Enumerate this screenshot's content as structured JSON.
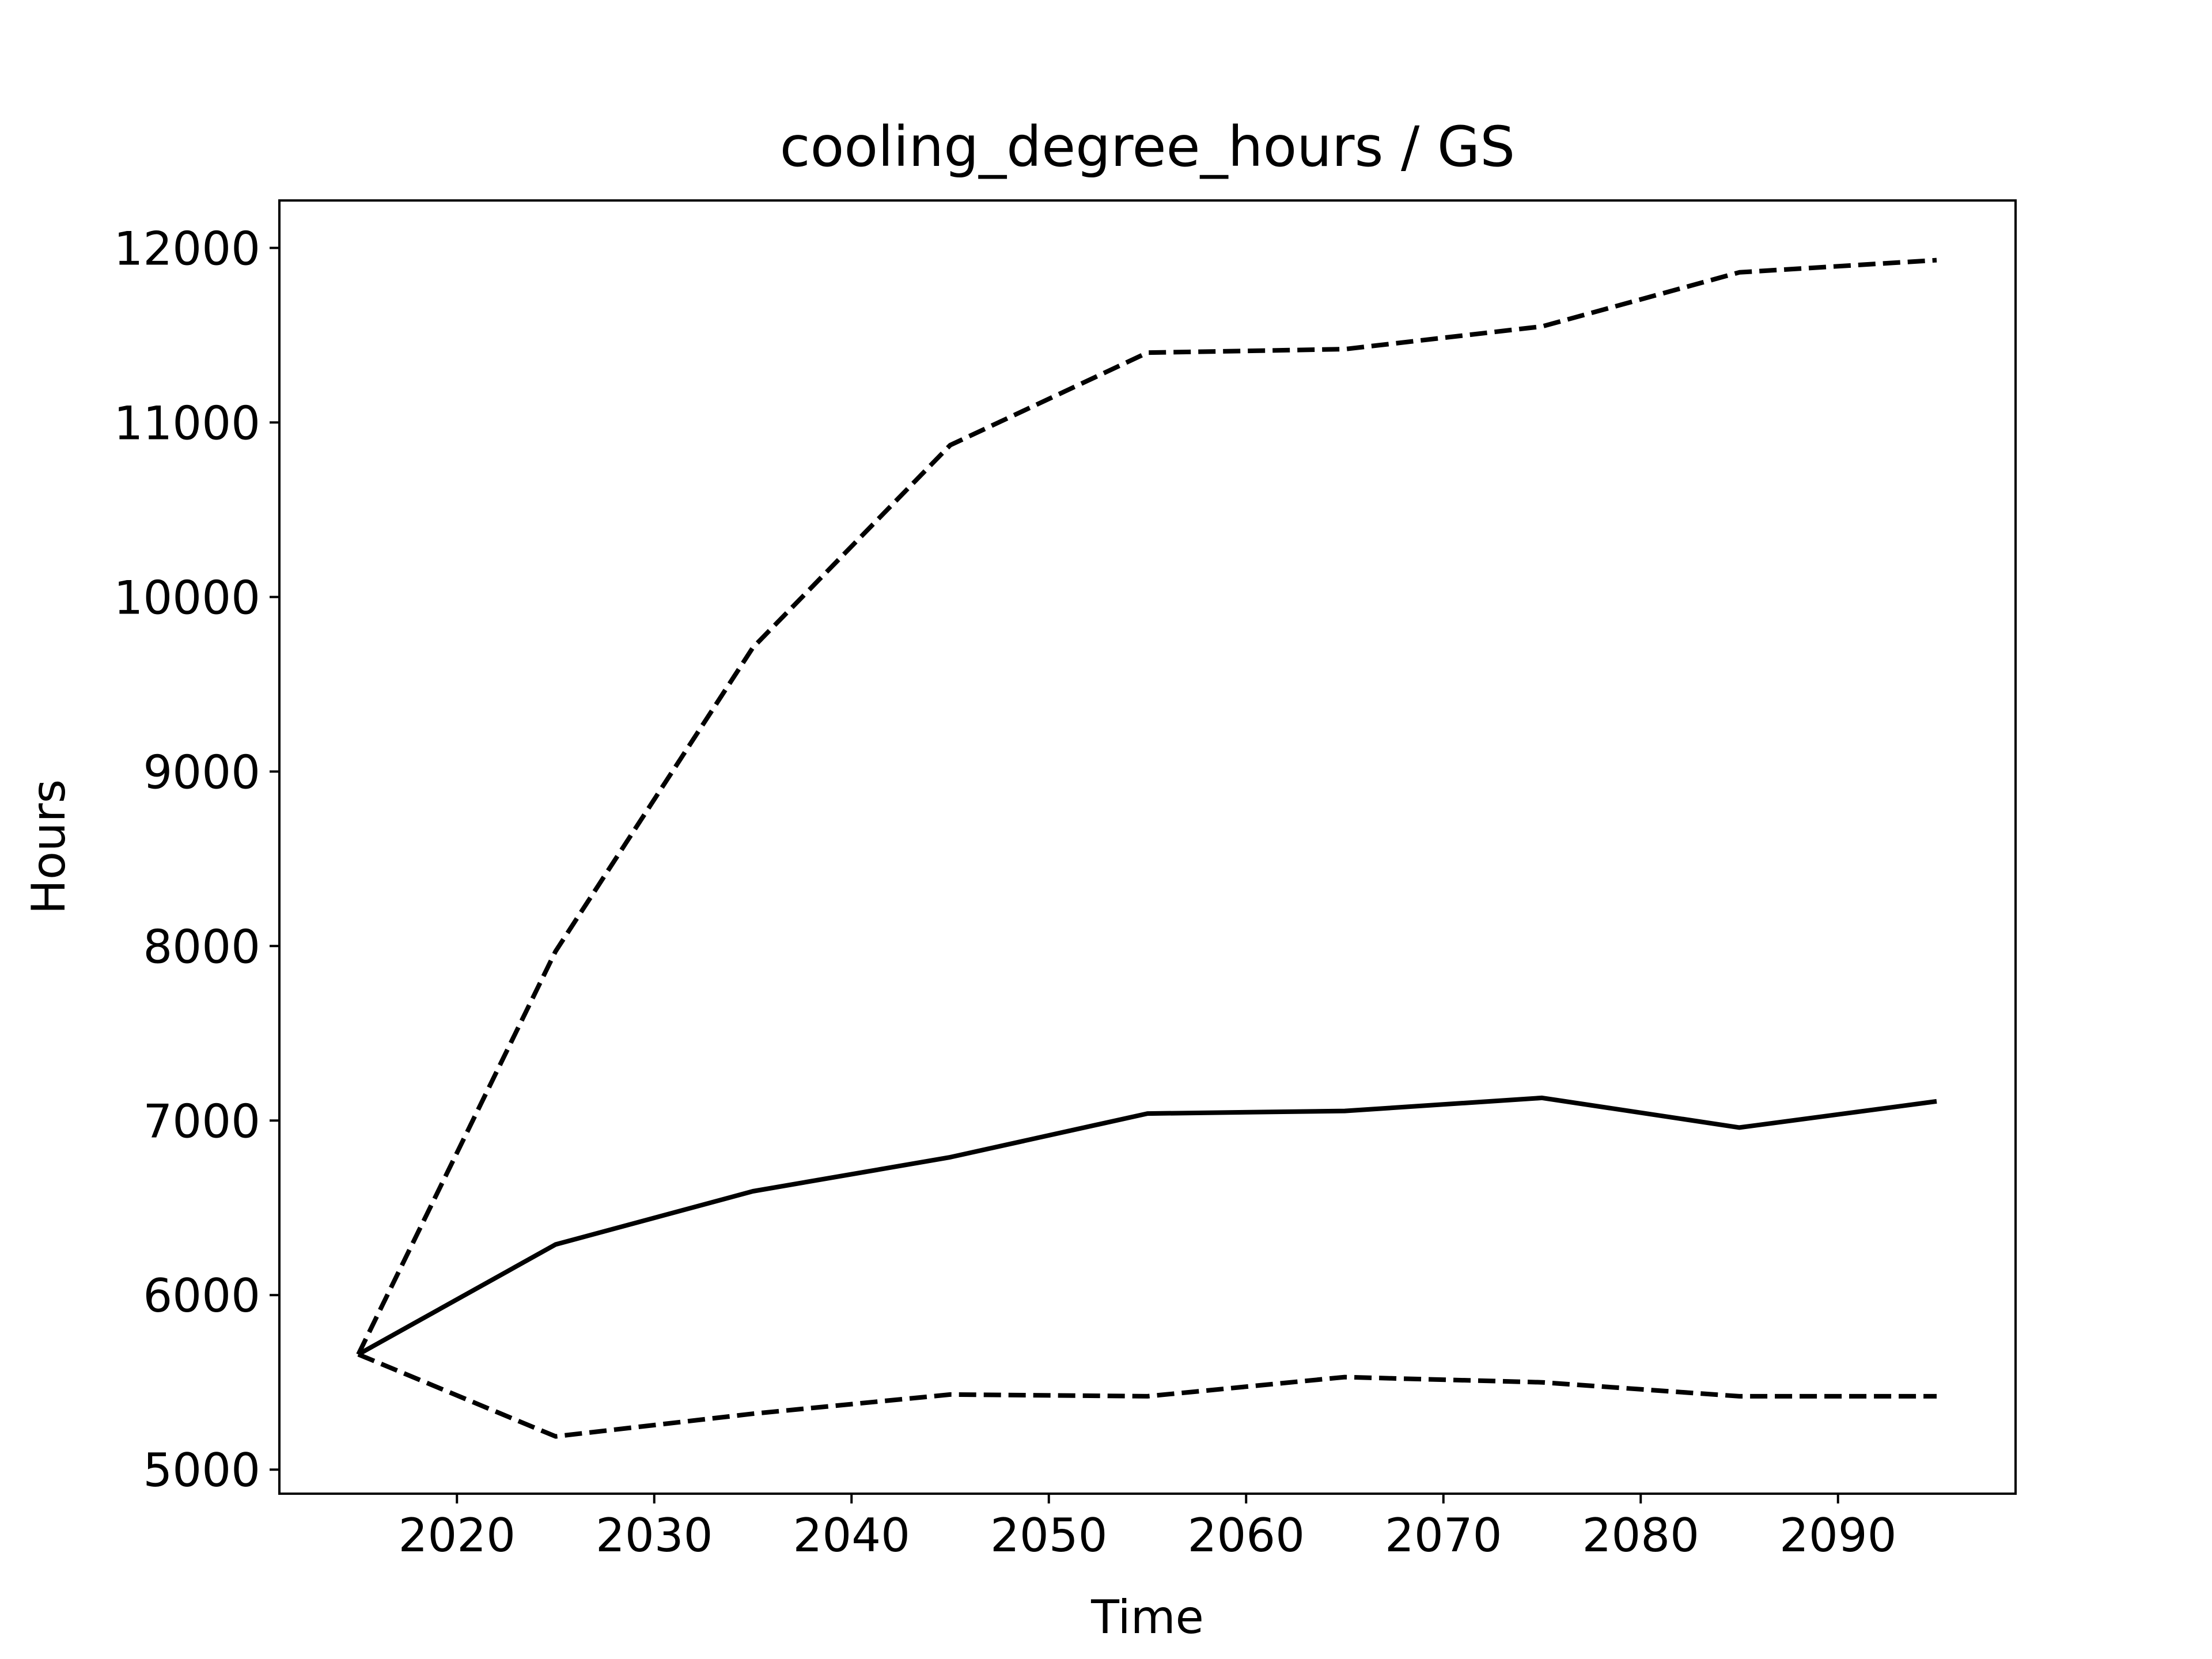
{
  "chart_data": {
    "type": "line",
    "title": "cooling_degree_hours / GS",
    "xlabel": "Time",
    "ylabel": "Hours",
    "x": [
      2015,
      2025,
      2035,
      2045,
      2055,
      2065,
      2075,
      2085,
      2095
    ],
    "series": [
      {
        "style": "solid",
        "color": "#000000",
        "values": [
          5660,
          6290,
          6595,
          6790,
          7040,
          7055,
          7130,
          6960,
          7110
        ]
      },
      {
        "style": "dashed",
        "color": "#000000",
        "values": [
          5660,
          7970,
          9710,
          10870,
          11400,
          11420,
          11550,
          11860,
          11930
        ]
      },
      {
        "style": "dashed",
        "color": "#000000",
        "values": [
          5660,
          5190,
          5320,
          5430,
          5420,
          5530,
          5500,
          5420,
          5420
        ]
      }
    ],
    "xlim": [
      2011.0,
      2099.0
    ],
    "ylim": [
      4862,
      12272
    ],
    "xticks": [
      2020,
      2030,
      2040,
      2050,
      2060,
      2070,
      2080,
      2090
    ],
    "yticks": [
      5000,
      6000,
      7000,
      8000,
      9000,
      10000,
      11000,
      12000
    ],
    "grid": false,
    "legend": false
  }
}
